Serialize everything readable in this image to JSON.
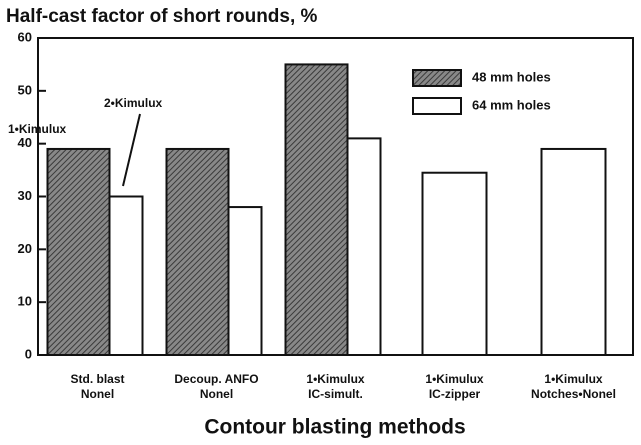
{
  "chart_data": {
    "type": "bar",
    "title": "Half-cast factor of short rounds, %",
    "x_label": "Contour blasting methods",
    "categories": [
      [
        "Std. blast",
        "Nonel"
      ],
      [
        "Decoup. ANFO",
        "Nonel"
      ],
      [
        "1•Kimulux",
        "IC-simult."
      ],
      [
        "1•Kimulux",
        "IC-zipper"
      ],
      [
        "1•Kimulux",
        "Notches•Nonel"
      ]
    ],
    "series": [
      {
        "name": "48 mm holes",
        "color": "#3a3a3a",
        "values": [
          39,
          39,
          55,
          null,
          null
        ]
      },
      {
        "name": "64 mm holes",
        "color": "#ffffff",
        "values": [
          30,
          28,
          41,
          34.5,
          39
        ]
      }
    ],
    "annotations": [
      "1•Kimulux",
      "2•Kimulux"
    ],
    "ylim": [
      0,
      60
    ],
    "yticks": [
      0,
      10,
      20,
      30,
      40,
      50,
      60
    ],
    "grid": false,
    "legend": "upper right"
  }
}
